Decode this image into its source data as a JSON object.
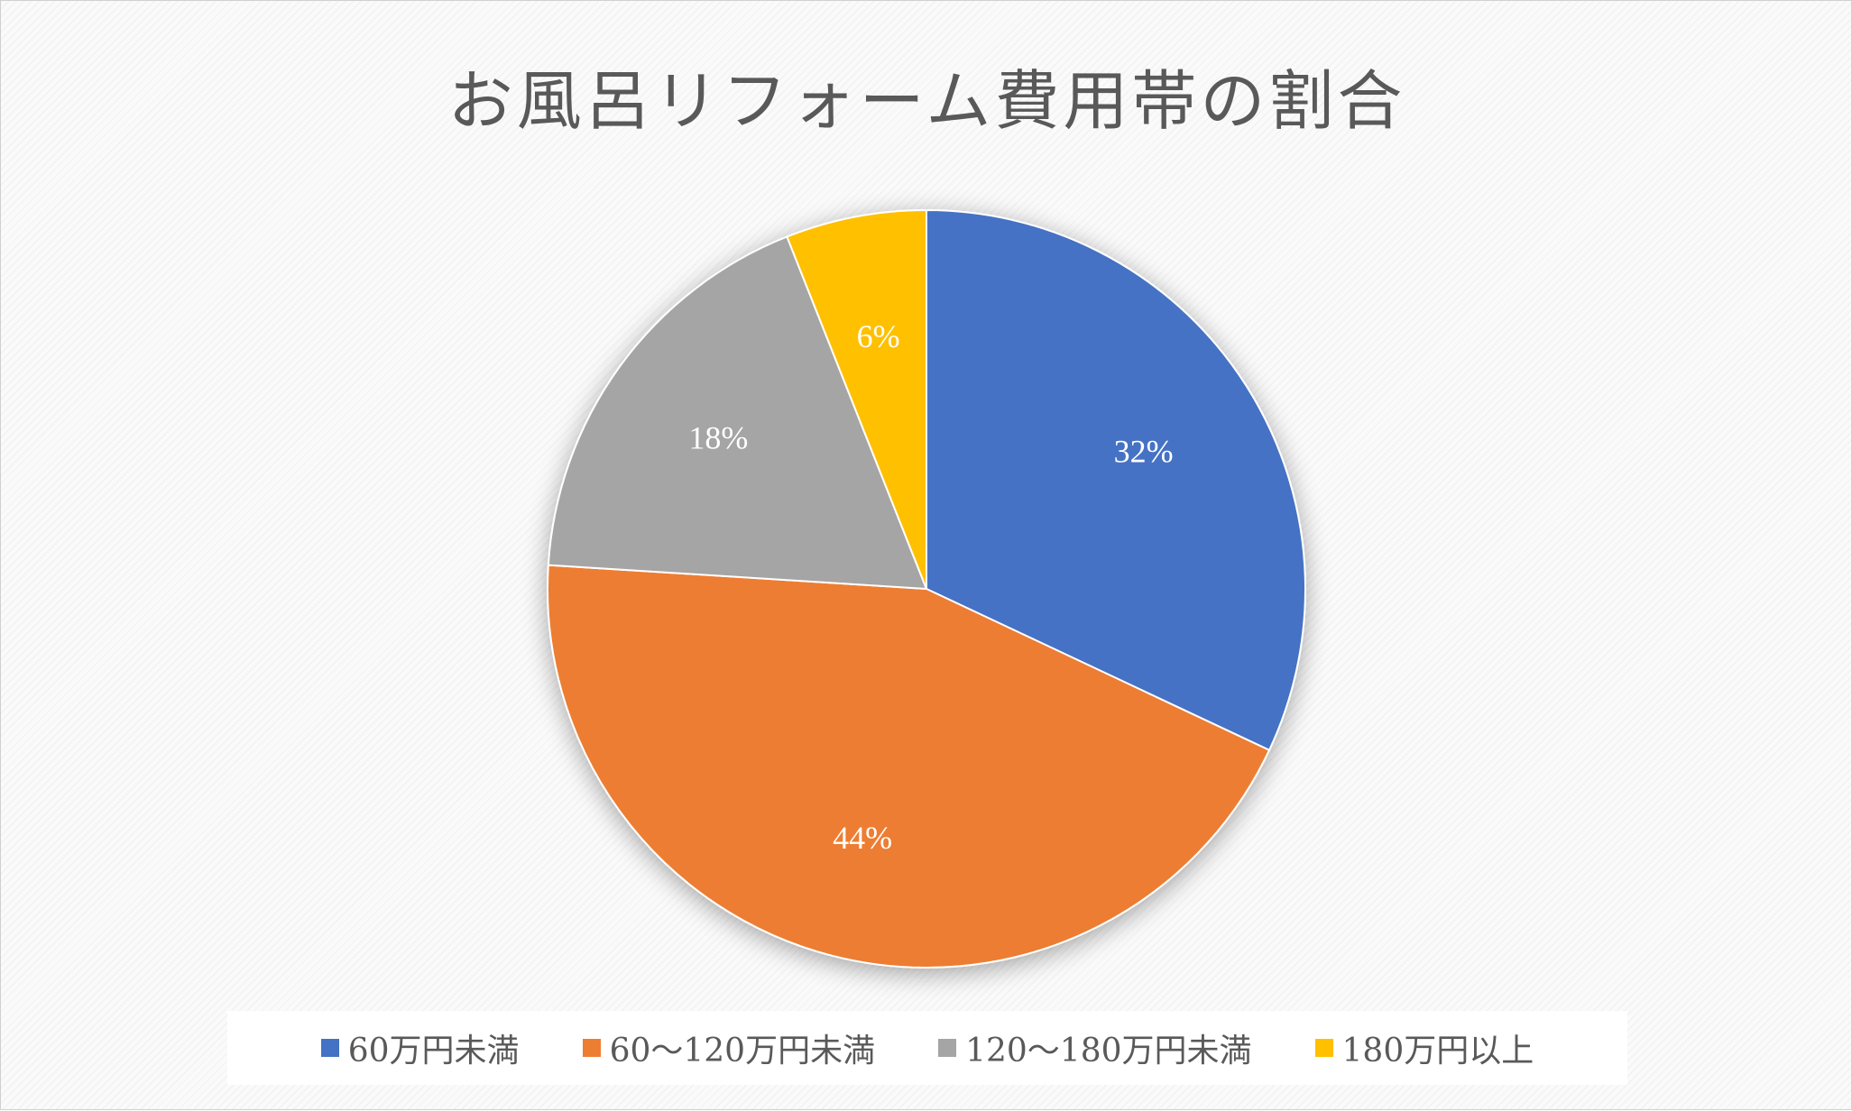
{
  "chart_data": {
    "type": "pie",
    "title": "お風呂リフォーム費用帯の割合",
    "categories": [
      "60万円未満",
      "60〜120万円未満",
      "120〜180万円未満",
      "180万円以上"
    ],
    "values": [
      32,
      44,
      18,
      6
    ],
    "data_labels": [
      "32%",
      "44%",
      "18%",
      "6%"
    ],
    "colors": [
      "#4472C4",
      "#ED7D31",
      "#A5A5A5",
      "#FFC000"
    ],
    "start_angle": "12 o'clock",
    "direction": "clockwise",
    "legend_position": "bottom"
  }
}
